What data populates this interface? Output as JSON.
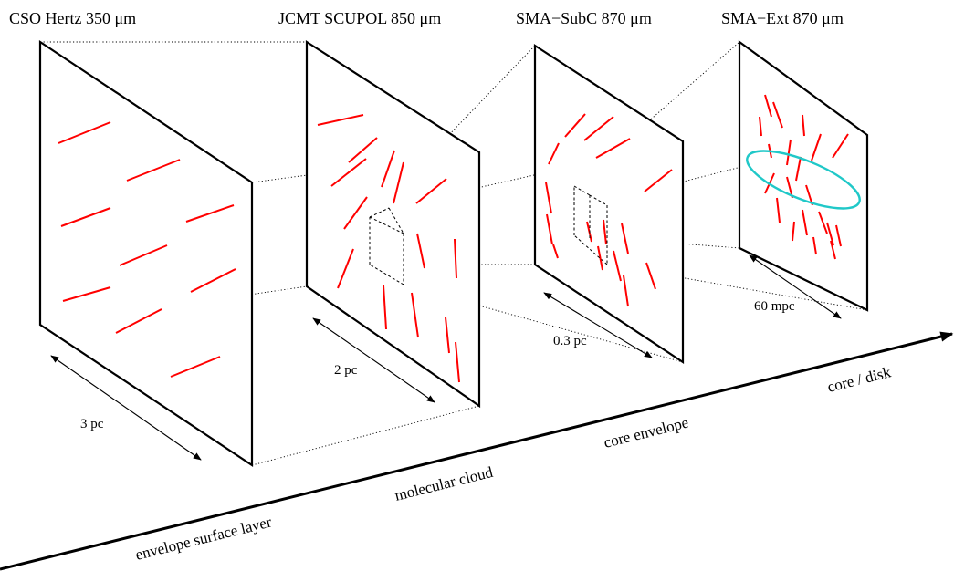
{
  "panels": [
    {
      "id": "cso",
      "title": "CSO Hertz 350 μm",
      "scale_label": "3 pc"
    },
    {
      "id": "jcmt",
      "title": "JCMT SCUPOL 850 μm",
      "scale_label": "2 pc"
    },
    {
      "id": "sma-subc",
      "title": "SMA−SubC 870  μm",
      "scale_label": "0.3 pc"
    },
    {
      "id": "sma-ext",
      "title": "SMA−Ext 870  μm",
      "scale_label": "60 mpc"
    }
  ],
  "axis": {
    "stages": [
      "envelope surface layer",
      "molecular cloud",
      "core envelope",
      "core / disk"
    ]
  },
  "colors": {
    "polarization_vectors": "#ff0000",
    "disk_ellipse": "#20c8c8",
    "frame": "#000000"
  }
}
